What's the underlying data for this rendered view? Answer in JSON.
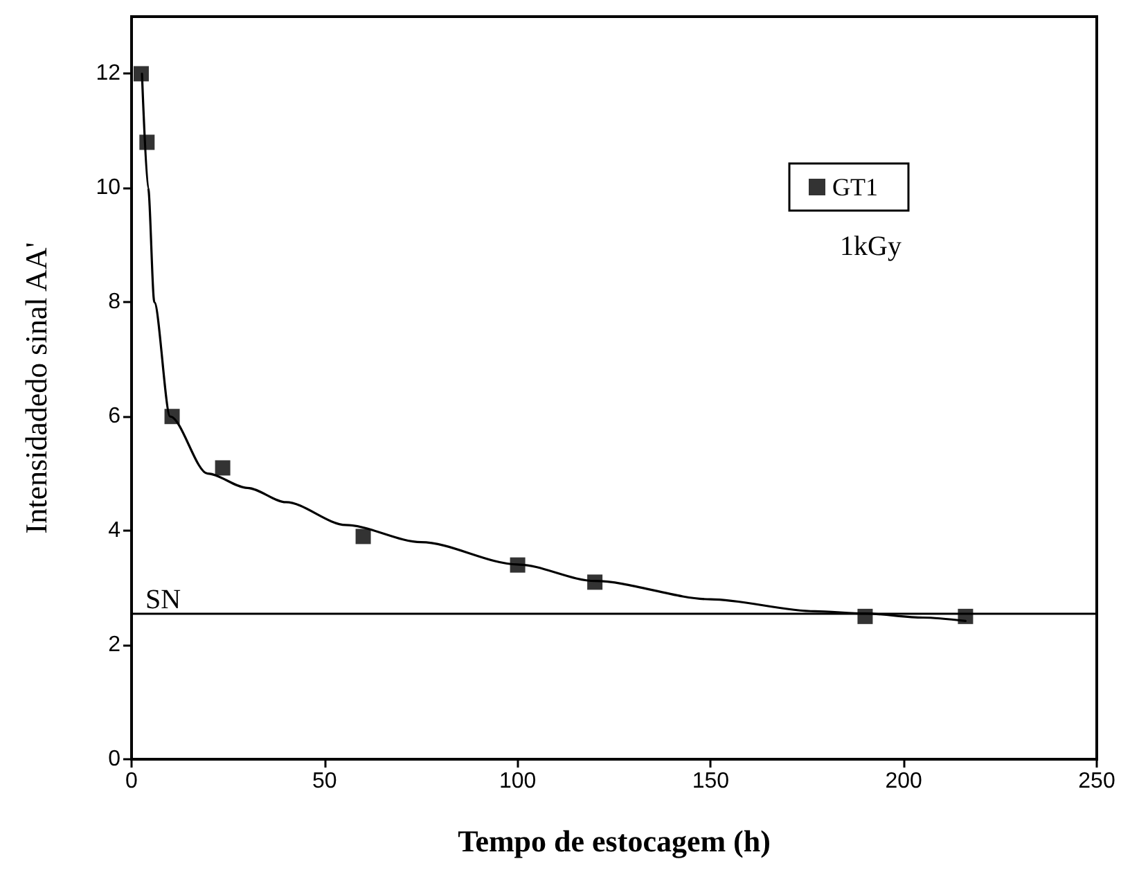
{
  "chart_data": {
    "type": "scatter",
    "xlabel": "Tempo de estocagem (h)",
    "ylabel": "Intensidadedo sinal AA'",
    "xlim": [
      0,
      250
    ],
    "xticks": [
      0,
      50,
      100,
      150,
      200,
      250
    ],
    "ylim": [
      0,
      13
    ],
    "yticks": [
      0,
      2,
      4,
      6,
      8,
      10,
      12
    ],
    "series": [
      {
        "name": "GT1",
        "color": "#000000",
        "marker": "square",
        "x": [
          2.5,
          4,
          10.5,
          23.6,
          60,
          100,
          120,
          190,
          216
        ],
        "values": [
          12,
          10.8,
          6.0,
          5.1,
          3.9,
          3.4,
          3.1,
          2.5,
          2.5
        ]
      },
      {
        "type": "line",
        "color": "#000000",
        "marker": "none",
        "line_style": "solid",
        "x": [
          2.7,
          4.3,
          5.9,
          10,
          19.7,
          30,
          40,
          55.5,
          75,
          100,
          120,
          150,
          177,
          190,
          205,
          216
        ],
        "values": [
          12.0,
          10.0,
          8.0,
          6.0,
          5.0,
          4.75,
          4.5,
          4.1,
          3.8,
          3.41,
          3.12,
          2.8,
          2.59,
          2.55,
          2.48,
          2.42
        ]
      }
    ],
    "ref_lines": [
      {
        "axis": "y",
        "value": 2.55,
        "label": "SN",
        "color": "#000000",
        "line_style": "solid"
      }
    ],
    "annotations": [
      "1kGy"
    ],
    "legend": "top right",
    "grid": false
  }
}
